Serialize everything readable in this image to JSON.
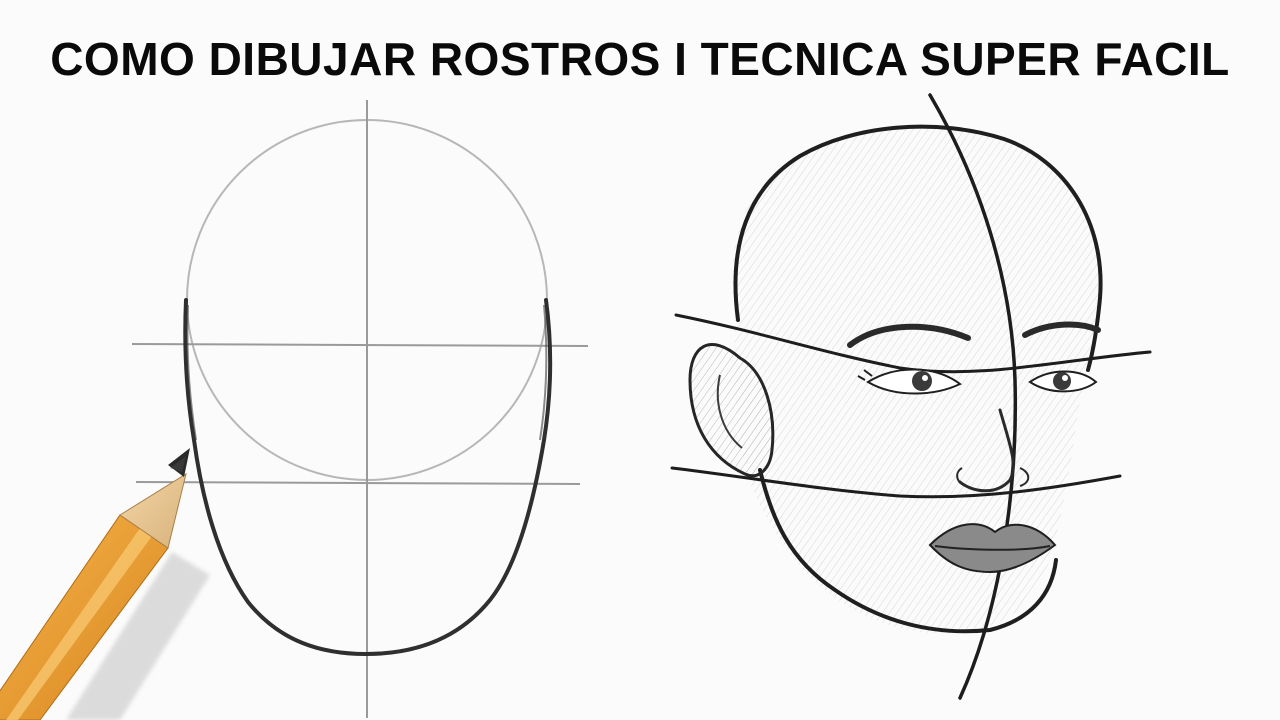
{
  "thumbnail": {
    "title": "COMO DIBUJAR ROSTROS I TECNICA SUPER FACIL",
    "background_color": "#fbfbfb",
    "text_color": "#0a0a0a",
    "pencil_color": "#f2a23a"
  },
  "illustrations": {
    "left": "head-construction-sketch",
    "right": "shaded-face-sketch",
    "tool": "pencil-icon"
  }
}
